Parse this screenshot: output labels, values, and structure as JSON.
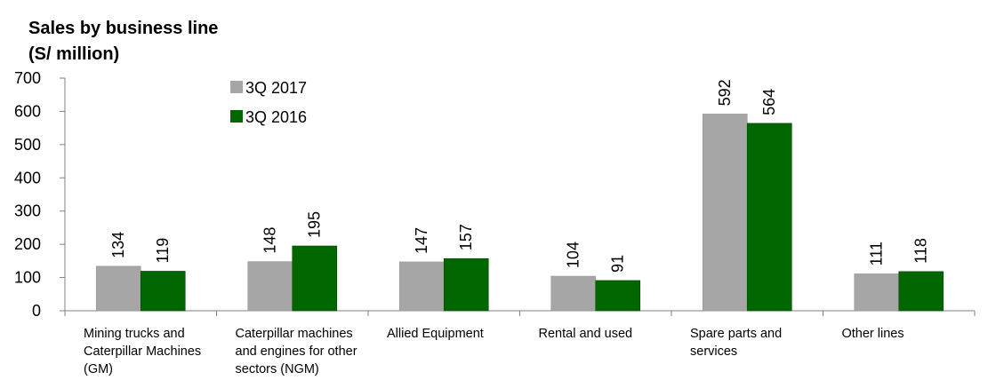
{
  "chart_data": {
    "type": "bar",
    "title_line1": "Sales by business line",
    "title_line2": "(S/ million)",
    "categories": [
      [
        "Mining trucks and",
        "Caterpillar Machines",
        "(GM)"
      ],
      [
        "Caterpillar machines",
        "and engines for other",
        "sectors (NGM)"
      ],
      [
        "Allied Equipment"
      ],
      [
        "Rental and used"
      ],
      [
        "Spare parts and",
        "services"
      ],
      [
        "Other lines"
      ]
    ],
    "series": [
      {
        "name": "3Q 2017",
        "color": "#a6a6a6",
        "values": [
          134,
          148,
          147,
          104,
          592,
          111
        ]
      },
      {
        "name": "3Q 2016",
        "color": "#006600",
        "values": [
          119,
          195,
          157,
          91,
          564,
          118
        ]
      }
    ],
    "ylim": [
      0,
      700
    ],
    "yticks": [
      0,
      100,
      200,
      300,
      400,
      500,
      600,
      700
    ],
    "grid": false,
    "legend_position": "top-left"
  }
}
